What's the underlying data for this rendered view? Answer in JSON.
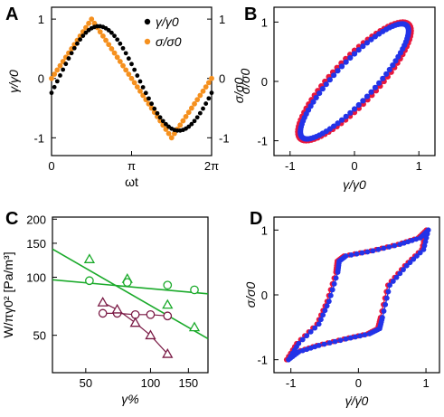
{
  "panels": {
    "a": "A",
    "b": "B",
    "c": "C",
    "d": "D"
  },
  "chart_data": [
    {
      "panel": "A",
      "type": "line",
      "xlabel": "ωt",
      "ylabel_left": "γ/γ0",
      "ylabel_right": "σ/σ0",
      "xlim": [
        0,
        6.2832
      ],
      "ylim": [
        -1.3,
        1.2
      ],
      "x_ticks": [
        0,
        3.1416,
        6.2832
      ],
      "x_tick_labels": [
        "0",
        "π",
        "2π"
      ],
      "y_ticks": [
        -1,
        0,
        1
      ],
      "y_tick_labels": [
        "-1",
        "0",
        "1"
      ],
      "legend": [
        "γ/γ0",
        "σ/σ0"
      ],
      "legend_position": "top-right",
      "colors": {
        "gamma": "#000000",
        "sigma": "#f5901e"
      },
      "series": [
        {
          "name": "γ/γ0",
          "kind": "shifted-response",
          "peak_phase": 1.85,
          "amplitude": 0.88,
          "color": "#000000"
        },
        {
          "name": "σ/σ0",
          "kind": "triangle",
          "peak_phase": 1.5708,
          "amplitude": 1.0,
          "color": "#f5901e"
        }
      ]
    },
    {
      "panel": "B",
      "type": "scatter",
      "xlabel": "γ/γ0",
      "ylabel": "σ/σ0",
      "xlim": [
        -1.25,
        1.25
      ],
      "ylim": [
        -1.25,
        1.25
      ],
      "x_ticks": [
        -1,
        0,
        1
      ],
      "y_ticks": [
        -1,
        0,
        1
      ],
      "x_tick_labels": [
        "-1",
        "0",
        "1"
      ],
      "y_tick_labels": [
        "-1",
        "0",
        "1"
      ],
      "loops": [
        {
          "color": "#e8173c",
          "x_amp": 0.88,
          "y_amp": 1.0,
          "phase_lag": 0.55
        },
        {
          "color": "#2233e8",
          "x_amp": 0.84,
          "y_amp": 0.97,
          "phase_lag": 0.5
        }
      ]
    },
    {
      "panel": "C",
      "type": "line",
      "xlabel": "γ%",
      "ylabel": "W/πγ0² [Pa/m³]",
      "x_scale": "log",
      "y_scale": "log",
      "xlim": [
        35,
        185
      ],
      "ylim": [
        32,
        205
      ],
      "x_ticks": [
        50,
        100,
        150
      ],
      "x_tick_labels": [
        "50",
        "100",
        "150"
      ],
      "y_ticks": [
        50,
        100,
        150,
        200
      ],
      "y_tick_labels": [
        "50",
        "100",
        "150",
        "200"
      ],
      "colors": {
        "green": "#1aaa2a",
        "maroon": "#7a1a45"
      },
      "series": [
        {
          "marker": "triangle",
          "color": "#1aaa2a",
          "x": [
            52,
            78,
            120,
            160
          ],
          "y": [
            124,
            98,
            72,
            55
          ]
        },
        {
          "marker": "circle",
          "color": "#1aaa2a",
          "x": [
            52,
            78,
            120,
            160
          ],
          "y": [
            96,
            94,
            91,
            86
          ]
        },
        {
          "marker": "circle",
          "color": "#7a1a45",
          "x": [
            60,
            70,
            85,
            100,
            120
          ],
          "y": [
            65,
            65,
            64,
            64,
            63
          ]
        },
        {
          "marker": "triangle",
          "color": "#7a1a45",
          "x": [
            60,
            70,
            85,
            100,
            120
          ],
          "y": [
            74,
            68,
            58,
            50,
            40
          ]
        }
      ],
      "fits": [
        {
          "color": "#1aaa2a",
          "x": [
            35,
            185
          ],
          "y": [
            140,
            48
          ]
        },
        {
          "color": "#1aaa2a",
          "x": [
            35,
            185
          ],
          "y": [
            97,
            82
          ]
        }
      ]
    },
    {
      "panel": "D",
      "type": "scatter",
      "xlabel": "γ̇/γ̇0",
      "ylabel": "σ/σ0",
      "xlim": [
        -1.25,
        1.2
      ],
      "ylim": [
        -1.2,
        1.2
      ],
      "x_ticks": [
        -1,
        0,
        1
      ],
      "y_ticks": [
        -1,
        0,
        1
      ],
      "x_tick_labels": [
        "-1",
        "0",
        "1"
      ],
      "y_tick_labels": [
        "-1",
        "0",
        "1"
      ],
      "loops": [
        {
          "color": "#e8173c"
        },
        {
          "color": "#2233e8"
        }
      ]
    }
  ]
}
